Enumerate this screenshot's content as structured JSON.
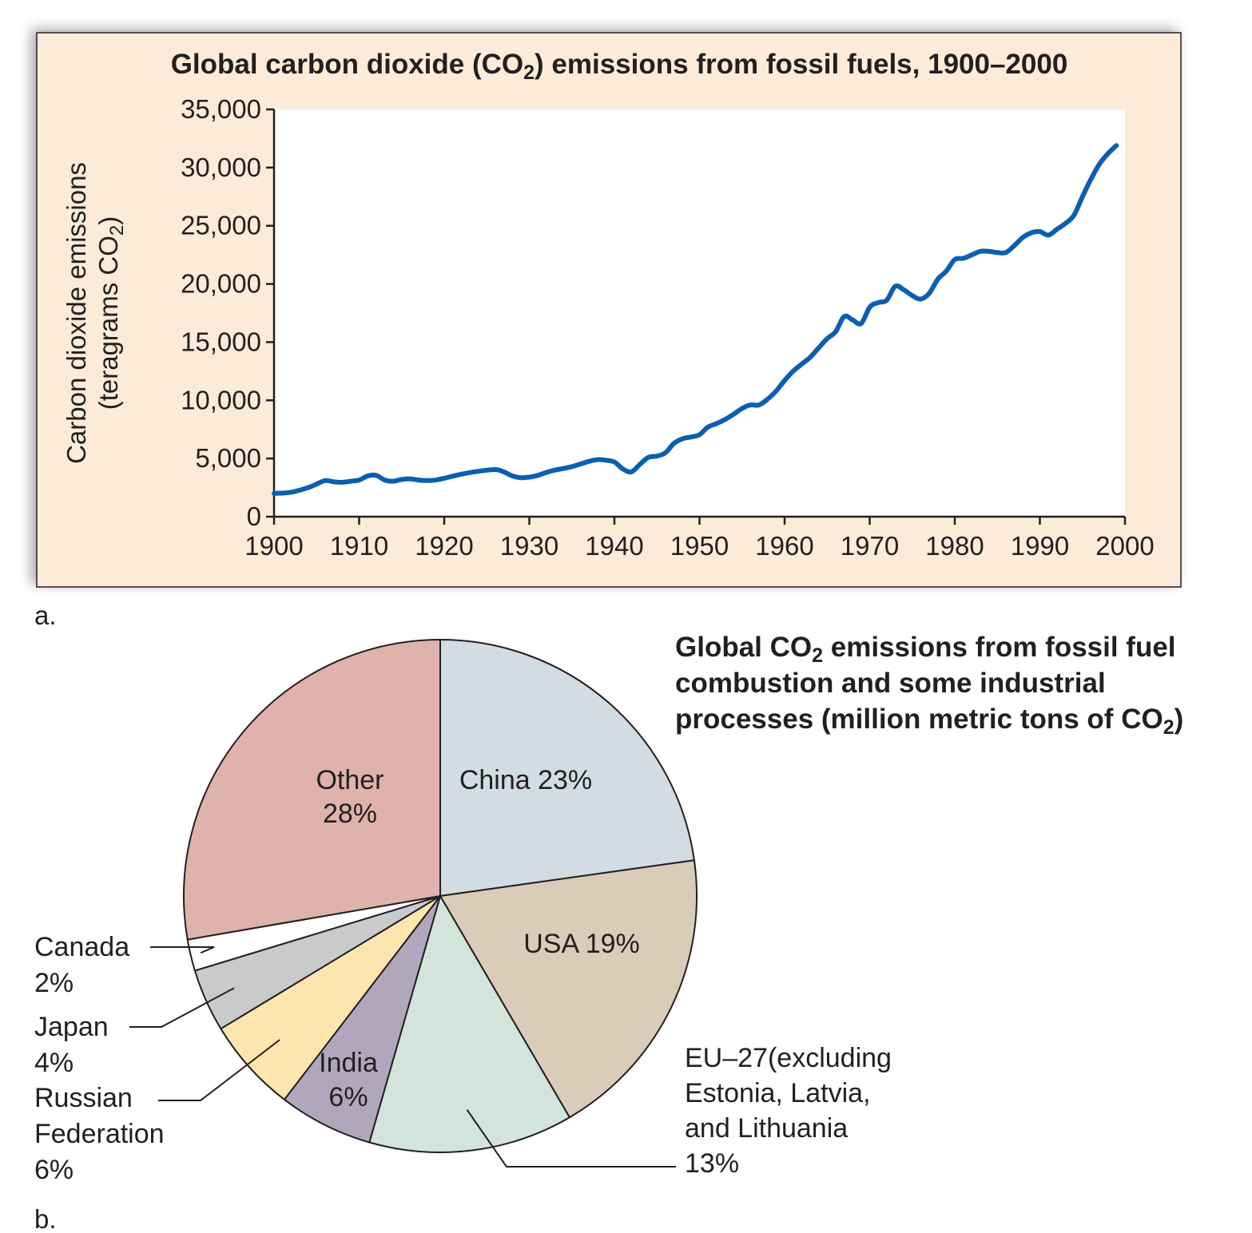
{
  "panel_a_label": "a.",
  "panel_b_label": "b.",
  "chart_data": [
    {
      "type": "line",
      "title": "Global carbon dioxide (CO2) emissions from fossil fuels, 1900–2000",
      "title_parts": {
        "before": "Global carbon dioxide (CO",
        "sub": "2",
        "after": ") emissions from fossil fuels, 1900–2000"
      },
      "ylabel_line1": "Carbon dioxide emissions",
      "ylabel_line2_parts": {
        "before": "(teragrams CO",
        "sub": "2",
        "after": ")"
      },
      "xlim": [
        1900,
        2000
      ],
      "ylim": [
        0,
        35000
      ],
      "x_ticks": [
        1900,
        1910,
        1920,
        1930,
        1940,
        1950,
        1960,
        1970,
        1980,
        1990,
        2000
      ],
      "y_ticks": [
        0,
        5000,
        10000,
        15000,
        20000,
        25000,
        30000,
        35000
      ],
      "y_tick_labels": [
        "0",
        "5,000",
        "10,000",
        "15,000",
        "20,000",
        "25,000",
        "30,000",
        "35,000"
      ],
      "colors": {
        "panel_bg": "#fcebd8",
        "plot_bg": "#ffffff",
        "line": "#0a5fb0"
      },
      "series": [
        {
          "x": [
            1900,
            1902,
            1904,
            1905,
            1906,
            1907,
            1908,
            1909,
            1910,
            1911,
            1912,
            1913,
            1914,
            1915,
            1916,
            1917,
            1918,
            1919,
            1920,
            1922,
            1924,
            1926,
            1927,
            1928,
            1929,
            1930,
            1931,
            1932,
            1933,
            1935,
            1937,
            1938,
            1939,
            1940,
            1941,
            1942,
            1943,
            1944,
            1945,
            1946,
            1947,
            1948,
            1949,
            1950,
            1951,
            1952,
            1953,
            1954,
            1955,
            1956,
            1957,
            1958,
            1959,
            1960,
            1961,
            1962,
            1963,
            1964,
            1965,
            1966,
            1967,
            1968,
            1969,
            1970,
            1971,
            1972,
            1973,
            1974,
            1975,
            1976,
            1977,
            1978,
            1979,
            1980,
            1981,
            1982,
            1983,
            1984,
            1985,
            1986,
            1987,
            1988,
            1989,
            1990,
            1991,
            1992,
            1993,
            1994,
            1995,
            1996,
            1997,
            1998,
            1999
          ],
          "y": [
            2000,
            2100,
            2500,
            2800,
            3100,
            3000,
            2950,
            3050,
            3150,
            3500,
            3550,
            3150,
            3050,
            3200,
            3250,
            3150,
            3100,
            3150,
            3300,
            3650,
            3900,
            4050,
            3850,
            3500,
            3350,
            3400,
            3550,
            3800,
            4000,
            4300,
            4750,
            4900,
            4850,
            4700,
            4100,
            3850,
            4500,
            5100,
            5200,
            5500,
            6300,
            6700,
            6850,
            7050,
            7700,
            8000,
            8350,
            8800,
            9300,
            9600,
            9600,
            10100,
            10800,
            11700,
            12500,
            13100,
            13700,
            14500,
            15300,
            15900,
            17200,
            16900,
            16600,
            18000,
            18400,
            18600,
            19800,
            19500,
            19000,
            18700,
            19200,
            20400,
            21100,
            22100,
            22200,
            22500,
            22800,
            22800,
            22700,
            22700,
            23300,
            24000,
            24400,
            24500,
            24200,
            24700,
            25200,
            25900,
            27500,
            29000,
            30300,
            31200,
            31900
          ]
        }
      ]
    },
    {
      "type": "pie",
      "title_line1_parts": {
        "before": "Global CO",
        "sub": "2",
        "after": " emissions from fossil fuel"
      },
      "title_line2": "combustion and some industrial",
      "title_line3_parts": {
        "before": "processes (million metric tons of CO",
        "sub": "2",
        "after": ")"
      },
      "slices": [
        {
          "key": "china",
          "name": "China",
          "value": 23,
          "color": "#d1dce3",
          "label_lines": [
            "China 23%"
          ]
        },
        {
          "key": "usa",
          "name": "USA",
          "value": 19,
          "color": "#d9ccb9",
          "label_lines": [
            "USA 19%"
          ]
        },
        {
          "key": "eu27",
          "name": "EU–27",
          "value": 13,
          "color": "#d2e4db",
          "label_lines": [
            "EU–27(excluding",
            "Estonia, Latvia,",
            "and Lithuania",
            "13%"
          ]
        },
        {
          "key": "india",
          "name": "India",
          "value": 6,
          "color": "#b1a7bd",
          "label_lines": [
            "India",
            "6%"
          ]
        },
        {
          "key": "russia",
          "name": "Russian Federation",
          "value": 6,
          "color": "#fce6ae",
          "label_lines": [
            "Russian",
            "Federation",
            "6%"
          ]
        },
        {
          "key": "japan",
          "name": "Japan",
          "value": 4,
          "color": "#c9cacc",
          "label_lines": [
            "Japan",
            "4%"
          ]
        },
        {
          "key": "canada",
          "name": "Canada",
          "value": 2,
          "color": "#ffffff",
          "label_lines": [
            "Canada",
            "2%"
          ]
        },
        {
          "key": "other",
          "name": "Other",
          "value": 28,
          "color": "#dfb2ac",
          "label_lines": [
            "Other",
            "28%"
          ]
        }
      ]
    }
  ]
}
